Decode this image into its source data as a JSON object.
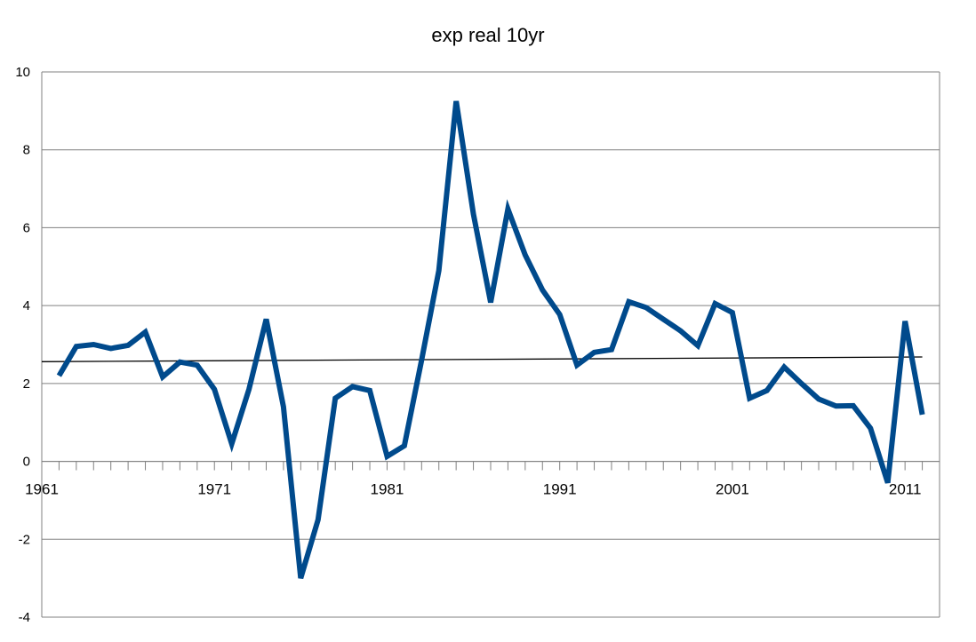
{
  "chart_data": {
    "type": "line",
    "title": "exp real 10yr",
    "xlabel": "",
    "ylabel": "",
    "ylim": [
      -4,
      10
    ],
    "yticks": [
      -4,
      -2,
      0,
      2,
      4,
      6,
      8,
      10
    ],
    "x_tick_labels": [
      "1961",
      "1971",
      "1981",
      "1991",
      "2001",
      "2011"
    ],
    "grid": "horizontal",
    "legend": "none",
    "colors": {
      "series": "#004A8C",
      "trend": "#000000",
      "grid": "#808080"
    },
    "series": [
      {
        "values": [
          [
            1962,
            2.2
          ],
          [
            1963,
            2.95
          ],
          [
            1964,
            3.0
          ],
          [
            1965,
            2.9
          ],
          [
            1966,
            2.98
          ],
          [
            1967,
            3.32
          ],
          [
            1968,
            2.17
          ],
          [
            1969,
            2.55
          ],
          [
            1970,
            2.47
          ],
          [
            1971,
            1.85
          ],
          [
            1972,
            0.45
          ],
          [
            1973,
            1.85
          ],
          [
            1974,
            3.65
          ],
          [
            1975,
            1.4
          ],
          [
            1976,
            -3.0
          ],
          [
            1977,
            -1.5
          ],
          [
            1978,
            1.62
          ],
          [
            1979,
            1.92
          ],
          [
            1980,
            1.82
          ],
          [
            1981,
            0.13
          ],
          [
            1982,
            0.4
          ],
          [
            1983,
            2.6
          ],
          [
            1984,
            4.9
          ],
          [
            1985,
            9.25
          ],
          [
            1986,
            6.35
          ],
          [
            1987,
            4.08
          ],
          [
            1988,
            6.48
          ],
          [
            1989,
            5.3
          ],
          [
            1990,
            4.4
          ],
          [
            1991,
            3.77
          ],
          [
            1992,
            2.47
          ],
          [
            1993,
            2.8
          ],
          [
            1994,
            2.87
          ],
          [
            1995,
            4.1
          ],
          [
            1996,
            3.95
          ],
          [
            1997,
            3.65
          ],
          [
            1998,
            3.35
          ],
          [
            1999,
            2.97
          ],
          [
            2000,
            4.05
          ],
          [
            2001,
            3.82
          ],
          [
            2002,
            1.62
          ],
          [
            2003,
            1.82
          ],
          [
            2004,
            2.42
          ],
          [
            2005,
            2.0
          ],
          [
            2006,
            1.6
          ],
          [
            2007,
            1.42
          ],
          [
            2008,
            1.43
          ],
          [
            2009,
            0.85
          ],
          [
            2010,
            -0.55
          ],
          [
            2011,
            3.6
          ],
          [
            2012,
            1.2
          ]
        ]
      },
      {
        "type": "trendline",
        "values": [
          [
            1961,
            2.56
          ],
          [
            2012,
            2.68
          ]
        ]
      }
    ]
  }
}
